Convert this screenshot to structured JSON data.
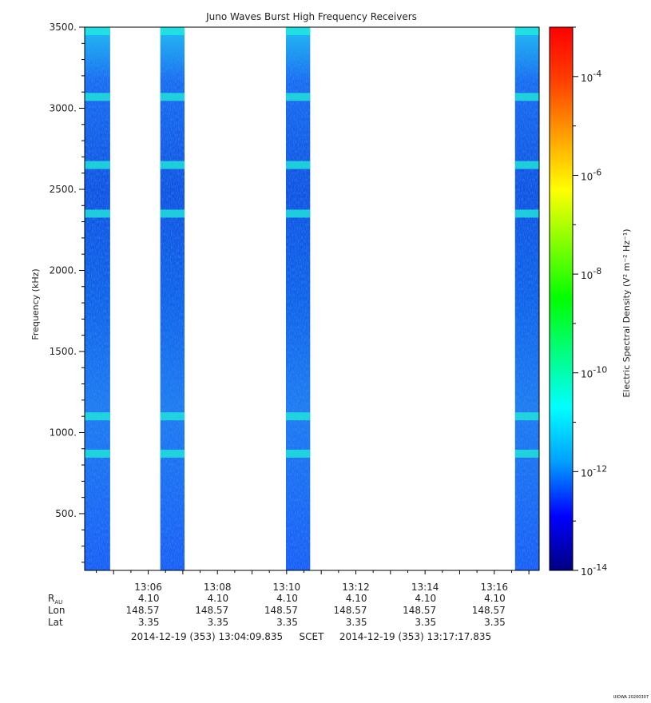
{
  "chart_data": {
    "type": "heatmap",
    "title": "Juno Waves Burst High Frequency Receivers",
    "ylabel": "Frequency (kHz)",
    "ylim": [
      150,
      3500
    ],
    "yticks": [
      "500.",
      "1000.",
      "1500.",
      "2000.",
      "2500.",
      "3000.",
      "3500."
    ],
    "ytick_values": [
      500,
      1000,
      1500,
      2000,
      2500,
      3000,
      3500
    ],
    "xlim_minutes": [
      4.1639,
      17.2973
    ],
    "xticks": [
      "13:06",
      "13:08",
      "13:10",
      "13:12",
      "13:14",
      "13:16"
    ],
    "xtick_minutes": [
      6,
      8,
      10,
      12,
      14,
      16
    ],
    "bursts_minutes": [
      [
        4.1639,
        4.9
      ],
      [
        6.35,
        7.05
      ],
      [
        9.98,
        10.68
      ],
      [
        16.6,
        17.2973
      ]
    ],
    "bright_bands_khz": [
      3070,
      2650,
      2350,
      1100,
      870
    ],
    "colorbar": {
      "label": "Electric Spectral Density (V² m⁻² Hz⁻¹)",
      "log_range": [
        -14,
        -3
      ],
      "tick_labels": [
        "10",
        "10",
        "10",
        "10",
        "10",
        "10"
      ],
      "tick_exponents": [
        "-4",
        "-6",
        "-8",
        "-10",
        "-12",
        "-14"
      ],
      "tick_log_values": [
        -4,
        -6,
        -8,
        -10,
        -12,
        -14
      ],
      "colors": [
        "#000080",
        "#0000ff",
        "#00a0ff",
        "#00ffff",
        "#00ff80",
        "#00ff00",
        "#80ff00",
        "#ffff00",
        "#ffa000",
        "#ff4000",
        "#ff0000"
      ]
    },
    "ephemeris": {
      "row_labels": [
        "R",
        "Lon",
        "Lat"
      ],
      "r_subscript": "AU",
      "r": [
        "4.10",
        "4.10",
        "4.10",
        "4.10",
        "4.10",
        "4.10"
      ],
      "lon": [
        "148.57",
        "148.57",
        "148.57",
        "148.57",
        "148.57",
        "148.57"
      ],
      "lat": [
        "3.35",
        "3.35",
        "3.35",
        "3.35",
        "3.35",
        "3.35"
      ]
    },
    "time_range": {
      "start": "2014-12-19 (353) 13:04:09.835",
      "mid": "SCET",
      "end": "2014-12-19 (353) 13:17:17.835"
    },
    "footer": "UIOWA 20200307"
  }
}
